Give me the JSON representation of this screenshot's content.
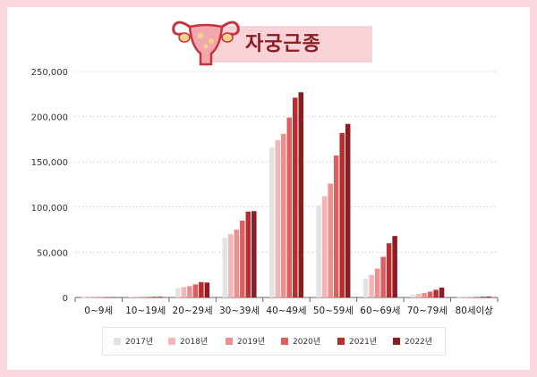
{
  "title": "자궁근종",
  "colors": {
    "background": "#f8d8dc",
    "title_bg": "#f7d3d8",
    "title_text": "#8a1c24",
    "series": [
      "#e3e3e3",
      "#f3b5b8",
      "#ee8f8f",
      "#de5f60",
      "#bc2b2e",
      "#8b1c22"
    ]
  },
  "chart_data": {
    "type": "bar",
    "categories": [
      "0~9세",
      "10~19세",
      "20~29세",
      "30~39세",
      "40~49세",
      "50~59세",
      "60~69세",
      "70~79세",
      "80세이상"
    ],
    "series": [
      {
        "name": "2017년",
        "values": [
          200,
          600,
          10500,
          66000,
          166000,
          102000,
          21000,
          3200,
          400
        ]
      },
      {
        "name": "2018년",
        "values": [
          200,
          650,
          11500,
          70000,
          174000,
          112000,
          25000,
          3800,
          450
        ]
      },
      {
        "name": "2019년",
        "values": [
          250,
          700,
          12500,
          75000,
          181000,
          126000,
          32000,
          5000,
          550
        ]
      },
      {
        "name": "2020년",
        "values": [
          250,
          700,
          14500,
          85000,
          199000,
          157000,
          45000,
          6500,
          700
        ]
      },
      {
        "name": "2021년",
        "values": [
          300,
          750,
          17000,
          95000,
          221000,
          182000,
          60000,
          8500,
          900
        ]
      },
      {
        "name": "2022년",
        "values": [
          300,
          800,
          16500,
          95500,
          227000,
          192000,
          68000,
          11000,
          1100
        ]
      }
    ],
    "y_ticks": [
      "0",
      "50,000",
      "100,000",
      "150,000",
      "200,000",
      "250,000"
    ],
    "ylim": [
      0,
      250000
    ],
    "grid": true,
    "legend_position": "bottom"
  }
}
